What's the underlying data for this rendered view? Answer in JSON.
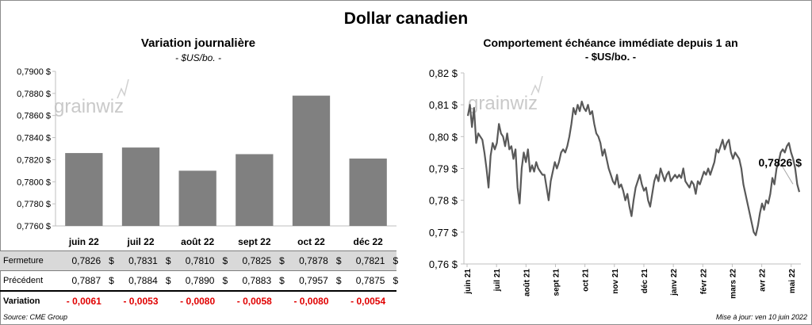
{
  "page": {
    "title": "Dollar canadien",
    "source": "Source: CME Group",
    "updated": "Mise à jour: ven 10 juin 2022",
    "watermark": "grainwiz"
  },
  "table": {
    "rows": [
      {
        "label": "Fermeture",
        "values": [
          "0,7826",
          "0,7831",
          "0,7810",
          "0,7825",
          "0,7878",
          "0,7821"
        ]
      },
      {
        "label": "Précédent",
        "values": [
          "0,7887",
          "0,7884",
          "0,7890",
          "0,7883",
          "0,7957",
          "0,7875"
        ]
      },
      {
        "label": "Variation",
        "values": [
          "- 0,0061",
          "- 0,0053",
          "- 0,0080",
          "- 0,0058",
          "- 0,0080",
          "- 0,0054"
        ]
      }
    ],
    "currency": "$"
  },
  "chart_data": [
    {
      "type": "bar",
      "title": "Variation  journalière",
      "subtitle": "- $US/bo. -",
      "categories": [
        "juin 22",
        "juil 22",
        "août 22",
        "sept 22",
        "oct 22",
        "déc 22"
      ],
      "values": [
        0.7826,
        0.7831,
        0.781,
        0.7825,
        0.7878,
        0.7821
      ],
      "ylim": [
        0.776,
        0.79
      ],
      "yticks": [
        "0,7760 $",
        "0,7780 $",
        "0,7800 $",
        "0,7820 $",
        "0,7840 $",
        "0,7860 $",
        "0,7880 $",
        "0,7900 $"
      ],
      "color": "#808080",
      "grid": false
    },
    {
      "type": "line",
      "title": "Comportement échéance immédiate depuis 1 an",
      "subtitle": "- $US/bo. -",
      "ylim": [
        0.76,
        0.82
      ],
      "yticks": [
        "0,76 $",
        "0,77 $",
        "0,78 $",
        "0,79 $",
        "0,80 $",
        "0,81 $",
        "0,82 $"
      ],
      "xticks": [
        "juin 21",
        "juil 21",
        "août 21",
        "sept 21",
        "oct 21",
        "nov 21",
        "déc 21",
        "janv 22",
        "févr 22",
        "mars 22",
        "avr 22",
        "mai 22"
      ],
      "last_label": "0,7826 $",
      "color": "#595959",
      "values": [
        0.8065,
        0.81,
        0.803,
        0.809,
        0.798,
        0.801,
        0.8,
        0.799,
        0.795,
        0.79,
        0.784,
        0.794,
        0.798,
        0.796,
        0.798,
        0.804,
        0.801,
        0.8,
        0.797,
        0.801,
        0.796,
        0.797,
        0.793,
        0.796,
        0.784,
        0.779,
        0.79,
        0.795,
        0.792,
        0.796,
        0.789,
        0.791,
        0.789,
        0.792,
        0.79,
        0.789,
        0.788,
        0.788,
        0.784,
        0.78,
        0.786,
        0.789,
        0.792,
        0.79,
        0.792,
        0.795,
        0.796,
        0.795,
        0.797,
        0.8,
        0.804,
        0.809,
        0.807,
        0.81,
        0.808,
        0.811,
        0.809,
        0.808,
        0.81,
        0.807,
        0.808,
        0.804,
        0.801,
        0.8,
        0.798,
        0.794,
        0.796,
        0.793,
        0.79,
        0.788,
        0.786,
        0.785,
        0.788,
        0.784,
        0.785,
        0.783,
        0.78,
        0.782,
        0.778,
        0.775,
        0.78,
        0.784,
        0.786,
        0.788,
        0.785,
        0.783,
        0.784,
        0.78,
        0.778,
        0.782,
        0.786,
        0.788,
        0.786,
        0.79,
        0.788,
        0.786,
        0.788,
        0.789,
        0.786,
        0.787,
        0.788,
        0.787,
        0.788,
        0.787,
        0.79,
        0.786,
        0.785,
        0.784,
        0.786,
        0.785,
        0.782,
        0.786,
        0.785,
        0.787,
        0.789,
        0.788,
        0.79,
        0.788,
        0.79,
        0.792,
        0.796,
        0.795,
        0.797,
        0.799,
        0.796,
        0.798,
        0.799,
        0.795,
        0.793,
        0.795,
        0.794,
        0.793,
        0.79,
        0.785,
        0.782,
        0.779,
        0.776,
        0.773,
        0.77,
        0.769,
        0.772,
        0.776,
        0.779,
        0.777,
        0.78,
        0.779,
        0.782,
        0.787,
        0.785,
        0.79,
        0.792,
        0.795,
        0.796,
        0.795,
        0.797,
        0.798,
        0.795,
        0.793,
        0.79,
        0.785,
        0.7826
      ]
    }
  ]
}
